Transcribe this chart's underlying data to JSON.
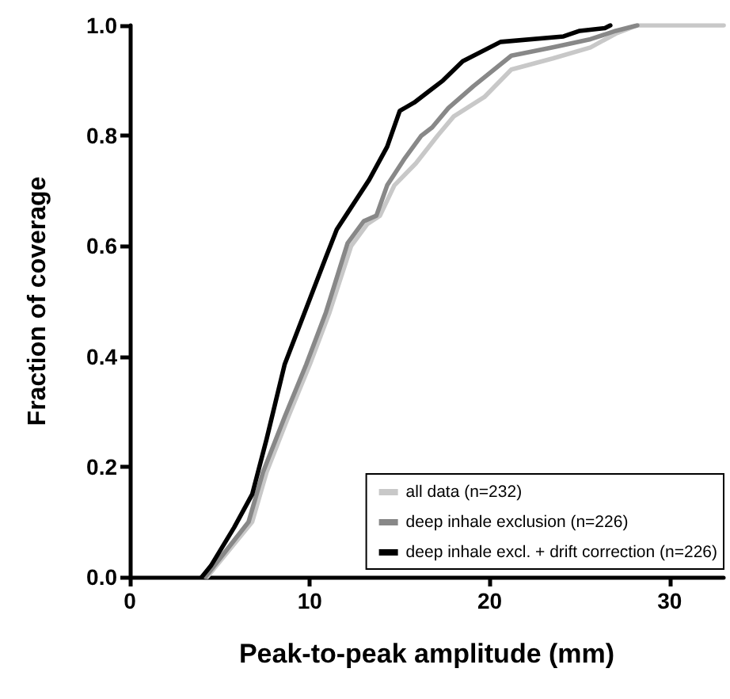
{
  "chart_data": {
    "type": "line",
    "xlabel": "Peak-to-peak amplitude (mm)",
    "ylabel": "Fraction of coverage",
    "xlim": [
      0,
      33
    ],
    "xticks": [
      0,
      10,
      20,
      30
    ],
    "ylim": [
      0,
      1
    ],
    "yticks": [
      {
        "value": 0,
        "label": "0.0"
      },
      {
        "value": 0.2,
        "label": "0.2"
      },
      {
        "value": 0.4,
        "label": "0.4"
      },
      {
        "value": 0.6,
        "label": "0.6"
      },
      {
        "value": 0.8,
        "label": "0.8"
      },
      {
        "value": 1,
        "label": "1.0"
      }
    ],
    "grid": false,
    "legend": "bottom right",
    "marker": "none",
    "line_style": "solid",
    "series": [
      {
        "name": "all data (n=232)",
        "color": "#c8c8c8",
        "x": [
          4.3,
          6.8,
          7.6,
          8.8,
          10.0,
          11.1,
          12.3,
          13.2,
          13.9,
          14.7,
          15.9,
          17.1,
          18.0,
          19.7,
          21.2,
          23.5,
          25.6,
          27.0,
          28.2,
          33.0
        ],
        "values": [
          0,
          0.1,
          0.19,
          0.29,
          0.385,
          0.48,
          0.6,
          0.64,
          0.655,
          0.71,
          0.75,
          0.8,
          0.835,
          0.87,
          0.92,
          0.94,
          0.96,
          0.985,
          1.0,
          1.0
        ]
      },
      {
        "name": "deep inhale exclusion (n=226)",
        "color": "#888888",
        "x": [
          4.2,
          6.6,
          7.4,
          8.6,
          9.8,
          10.9,
          12.1,
          13.0,
          13.7,
          14.3,
          15.3,
          16.2,
          16.8,
          17.7,
          19.1,
          21.2,
          23.5,
          25.6,
          27.0,
          28.2
        ],
        "values": [
          0,
          0.1,
          0.19,
          0.29,
          0.385,
          0.48,
          0.605,
          0.645,
          0.655,
          0.71,
          0.76,
          0.8,
          0.815,
          0.85,
          0.89,
          0.945,
          0.96,
          0.975,
          0.99,
          1.0
        ]
      },
      {
        "name": "deep inhale excl. + drift correction (n=226)",
        "color": "#000000",
        "x": [
          4.0,
          4.5,
          5.8,
          6.8,
          7.6,
          8.6,
          9.6,
          10.9,
          11.5,
          12.1,
          13.3,
          14.3,
          15.0,
          15.8,
          16.6,
          17.4,
          18.5,
          20.6,
          24.1,
          25.0,
          26.4,
          26.7
        ],
        "values": [
          0,
          0.02,
          0.09,
          0.15,
          0.25,
          0.385,
          0.47,
          0.58,
          0.63,
          0.66,
          0.72,
          0.78,
          0.845,
          0.86,
          0.88,
          0.9,
          0.935,
          0.97,
          0.98,
          0.99,
          0.995,
          1.0
        ]
      }
    ]
  }
}
